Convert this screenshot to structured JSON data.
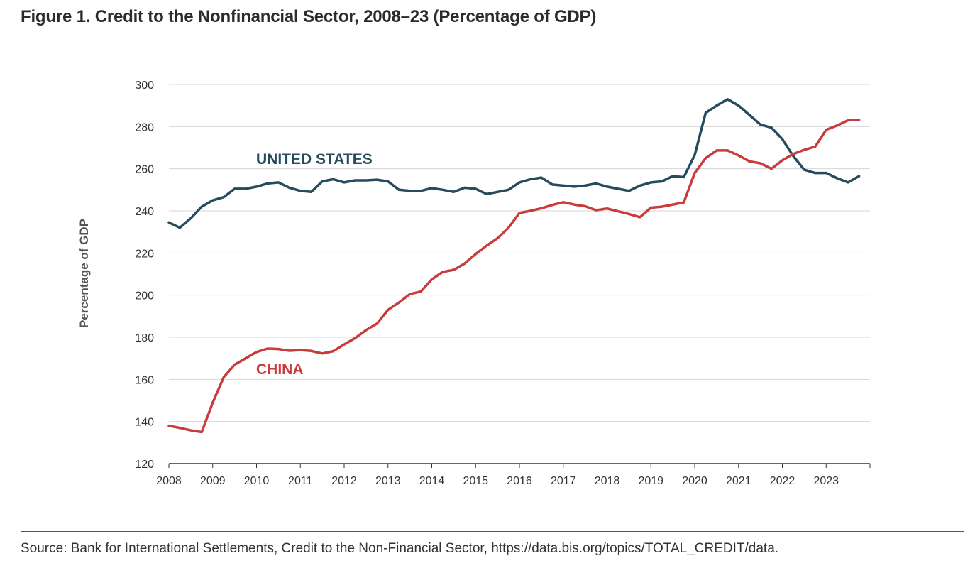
{
  "figure": {
    "title": "Figure 1. Credit to the Nonfinancial Sector, 2008–23 (Percentage of GDP)",
    "source": "Source: Bank for International Settlements, Credit to the Non-Financial Sector, https://data.bis.org/topics/TOTAL_CREDIT/data."
  },
  "chart_data": {
    "type": "line",
    "ylabel": "Percentage of GDP",
    "ylim": [
      120,
      300
    ],
    "yticks": [
      120,
      140,
      160,
      180,
      200,
      220,
      240,
      260,
      280,
      300
    ],
    "xlim": [
      2008,
      2024
    ],
    "xticks": [
      "2008",
      "2009",
      "2010",
      "2011",
      "2012",
      "2013",
      "2014",
      "2015",
      "2016",
      "2017",
      "2018",
      "2019",
      "2020",
      "2021",
      "2022",
      "2023"
    ],
    "grid": "horizontal",
    "x_start": "2008 Q1",
    "x_step": "quarter",
    "series": [
      {
        "name": "UNITED STATES",
        "color": "#264b5d",
        "values": [
          234.5,
          232,
          236.5,
          242,
          245,
          246.5,
          250.5,
          250.5,
          251.5,
          253,
          253.5,
          251,
          249.5,
          249,
          254,
          255,
          253.5,
          254.5,
          254.5,
          254.8,
          254,
          250,
          249.5,
          249.5,
          250.8,
          250,
          249,
          251,
          250.5,
          248,
          249,
          250,
          253.5,
          255,
          255.8,
          252.5,
          252,
          251.5,
          252,
          253,
          251.5,
          250.5,
          249.5,
          252,
          253.5,
          254,
          256.5,
          256,
          266.5,
          286.5,
          290,
          293,
          290,
          285.5,
          281,
          279.5,
          274,
          266,
          259.5,
          258,
          258,
          255.5,
          253.5,
          256.5
        ]
      },
      {
        "name": "CHINA",
        "color": "#c83c3c",
        "values": [
          138,
          137,
          135.8,
          135,
          149,
          161,
          167,
          170,
          173,
          174.6,
          174.4,
          173.6,
          173.9,
          173.5,
          172.3,
          173.4,
          176.6,
          179.6,
          183.4,
          186.5,
          193,
          196.5,
          200.5,
          201.7,
          207.5,
          211,
          212,
          215,
          219.5,
          223.5,
          227,
          232,
          239,
          240,
          241.2,
          242.8,
          244.1,
          243,
          242.2,
          240.3,
          241.1,
          239.8,
          238.5,
          237,
          241.5,
          242,
          243,
          244,
          258,
          265,
          268.7,
          268.7,
          266.3,
          263.5,
          262.6,
          260,
          264,
          267,
          269,
          270.5,
          278.5,
          280.5,
          283,
          283.2
        ]
      }
    ]
  }
}
